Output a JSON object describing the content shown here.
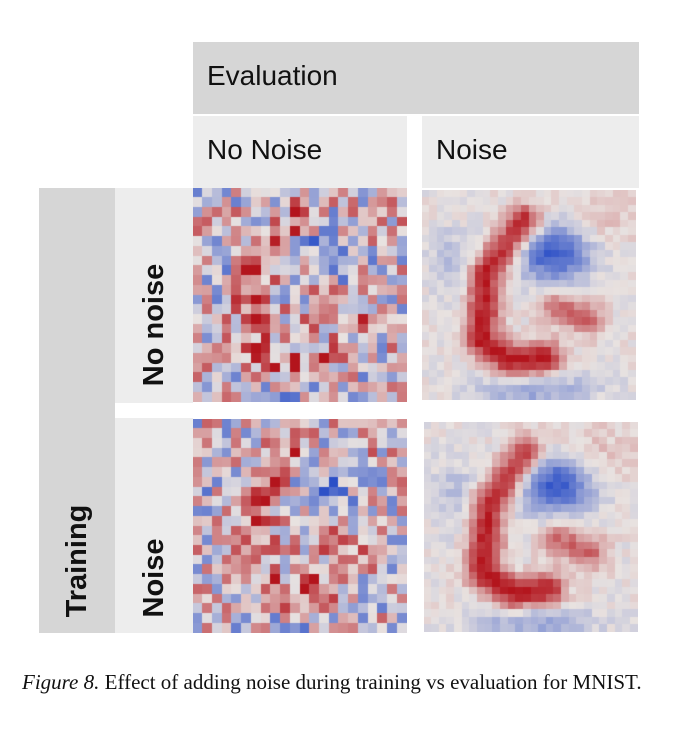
{
  "figure": {
    "header_top": "Evaluation",
    "col_headers": [
      "No Noise",
      "Noise"
    ],
    "row_group_label": "Training",
    "row_headers": [
      "No noise",
      "Noise"
    ],
    "colormap": {
      "low": "#2b4fc7",
      "mid": "#e8e2e0",
      "high": "#b3141c"
    },
    "panels": [
      {
        "row": 0,
        "col": 0,
        "style": "noisy"
      },
      {
        "row": 0,
        "col": 1,
        "style": "smooth"
      },
      {
        "row": 1,
        "col": 0,
        "style": "noisy"
      },
      {
        "row": 1,
        "col": 1,
        "style": "smooth"
      }
    ]
  },
  "caption": {
    "label": "Figure 8.",
    "text": " Effect of adding noise during training vs evaluation for MNIST."
  }
}
